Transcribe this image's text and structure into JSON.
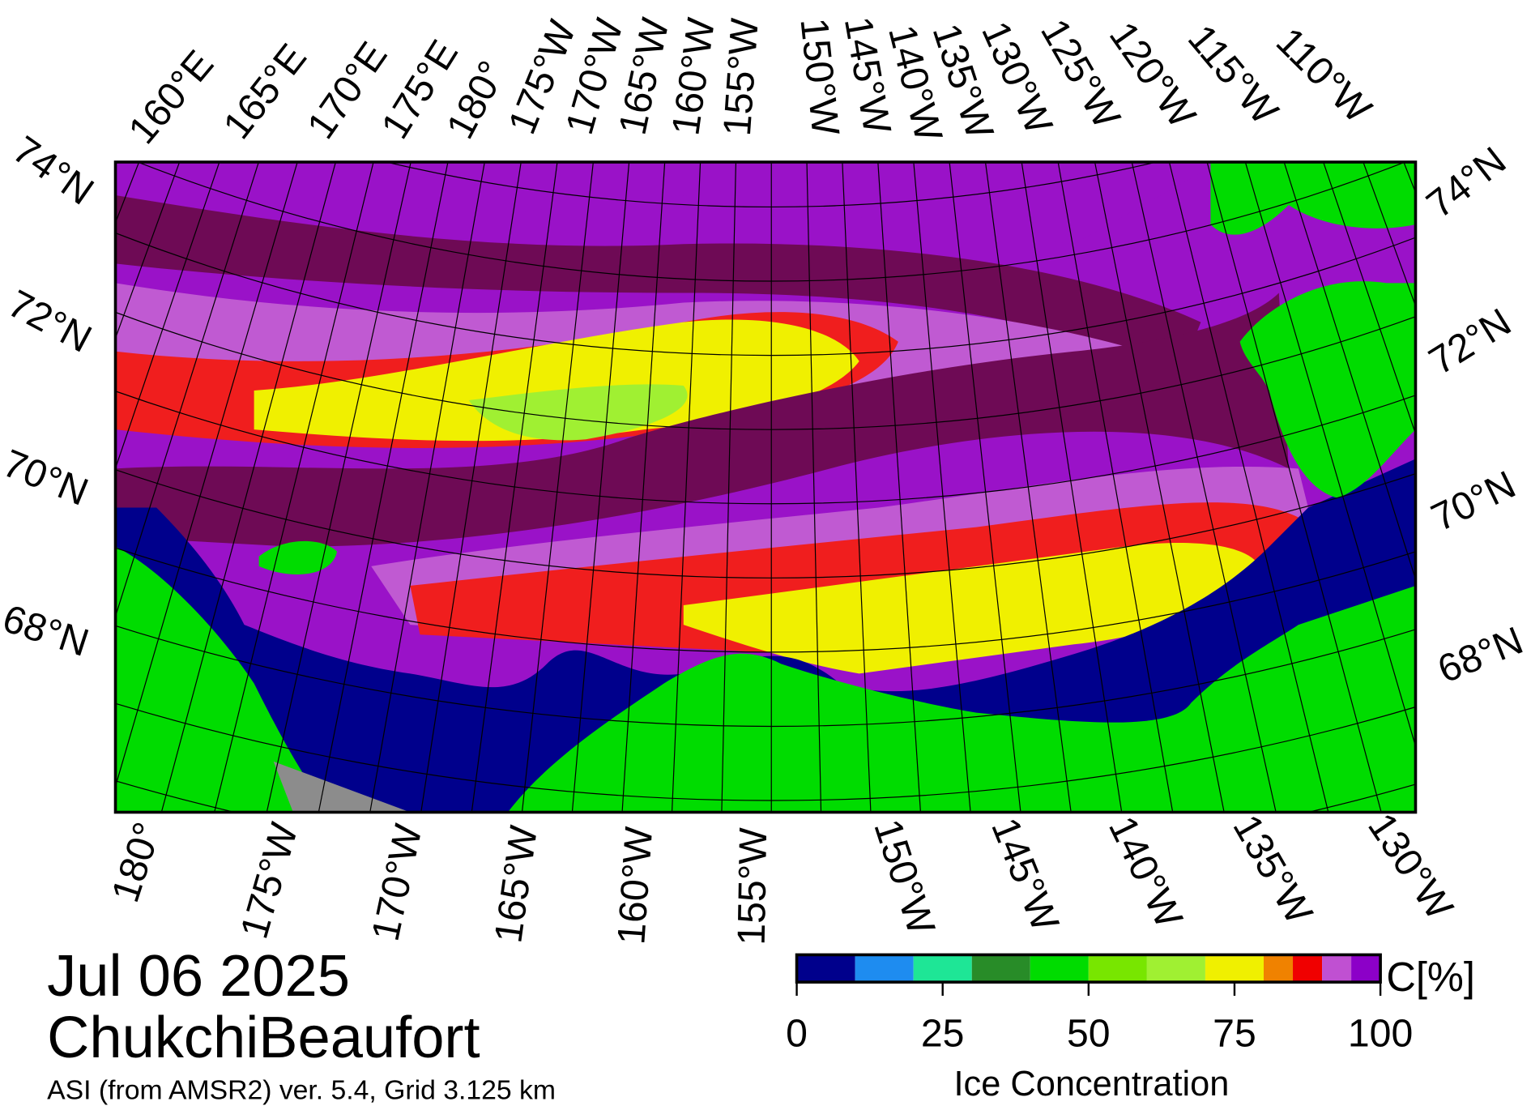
{
  "map": {
    "top_longitudes": [
      "160°E",
      "165°E",
      "170°E",
      "175°E",
      "180°",
      "175°W",
      "170°W",
      "165°W",
      "160°W",
      "155°W",
      "150°W",
      "145°W",
      "140°W",
      "135°W",
      "130°W",
      "125°W",
      "120°W",
      "115°W",
      "110°W"
    ],
    "bottom_longitudes": [
      "180°",
      "175°W",
      "170°W",
      "165°W",
      "160°W",
      "155°W",
      "150°W",
      "145°W",
      "140°W",
      "135°W",
      "130°W"
    ],
    "left_latitudes": [
      "74°N",
      "72°N",
      "70°N",
      "68°N"
    ],
    "right_latitudes": [
      "74°N",
      "72°N",
      "70°N",
      "68°N"
    ]
  },
  "date": "Jul 06 2025",
  "region": "ChukchiBeaufort",
  "source": "ASI (from AMSR2) ver. 5.4,  Grid 3.125 km",
  "colorbar": {
    "unit": "C[%]",
    "label": "Ice Concentration",
    "xlim": [
      0,
      100
    ],
    "ticks": [
      0,
      25,
      50,
      75,
      100
    ],
    "bounds": [
      0,
      10,
      20,
      30,
      40,
      50,
      60,
      70,
      80,
      85,
      90,
      95,
      100
    ],
    "colors": [
      "#00008c",
      "#1e8cf0",
      "#1ee696",
      "#288c28",
      "#00dc00",
      "#78e600",
      "#a0f032",
      "#f0f000",
      "#f08200",
      "#f00000",
      "#c050d2",
      "#8c00c8"
    ]
  }
}
